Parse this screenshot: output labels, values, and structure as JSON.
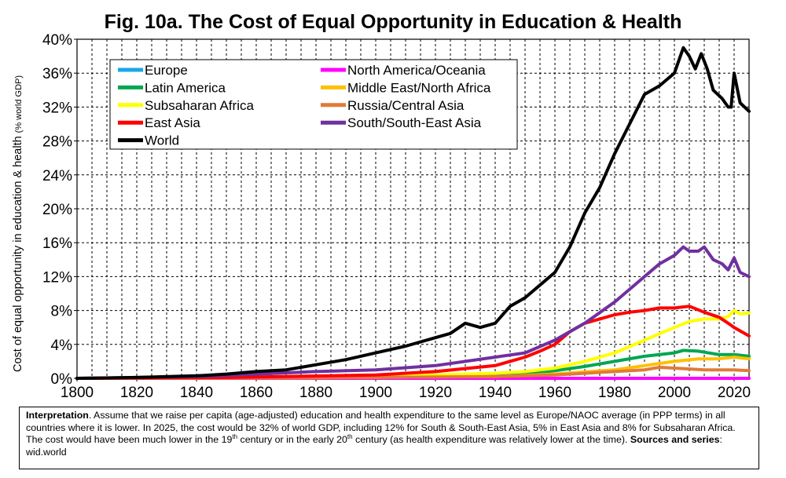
{
  "chart_data": {
    "type": "line",
    "title": "Fig. 10a. The Cost of Equal Opportunity in Education & Health",
    "ylabel": "Cost of equal opportunity in education & health",
    "ylabel_unit": "(% world GDP)",
    "xlabel": "",
    "xlim": [
      1800,
      2025
    ],
    "ylim": [
      0,
      40
    ],
    "x_ticks": [
      "1800",
      "1820",
      "1840",
      "1860",
      "1880",
      "1900",
      "1920",
      "1940",
      "1960",
      "1980",
      "2000",
      "2020"
    ],
    "y_ticks": [
      "0%",
      "4%",
      "8%",
      "12%",
      "16%",
      "20%",
      "24%",
      "28%",
      "32%",
      "36%",
      "40%"
    ],
    "grid": true,
    "legend_position": "top-left",
    "series": [
      {
        "name": "Europe",
        "color": "#1ba7e8",
        "points": [
          [
            1800,
            0
          ],
          [
            2025,
            0
          ]
        ]
      },
      {
        "name": "North America/Oceania",
        "color": "#ff00ff",
        "points": [
          [
            1800,
            0
          ],
          [
            2025,
            0
          ]
        ]
      },
      {
        "name": "Latin America",
        "color": "#00a651",
        "points": [
          [
            1800,
            0
          ],
          [
            1850,
            0.05
          ],
          [
            1900,
            0.15
          ],
          [
            1940,
            0.3
          ],
          [
            1950,
            0.5
          ],
          [
            1960,
            0.9
          ],
          [
            1970,
            1.4
          ],
          [
            1980,
            2.0
          ],
          [
            1990,
            2.6
          ],
          [
            2000,
            3.0
          ],
          [
            2003,
            3.3
          ],
          [
            2008,
            3.2
          ],
          [
            2015,
            2.8
          ],
          [
            2020,
            2.8
          ],
          [
            2025,
            2.6
          ]
        ]
      },
      {
        "name": "Middle East/North Africa",
        "color": "#ffc000",
        "points": [
          [
            1800,
            0
          ],
          [
            1850,
            0.05
          ],
          [
            1900,
            0.1
          ],
          [
            1940,
            0.2
          ],
          [
            1960,
            0.5
          ],
          [
            1980,
            1.0
          ],
          [
            1990,
            1.5
          ],
          [
            2000,
            2.0
          ],
          [
            2008,
            2.3
          ],
          [
            2015,
            2.3
          ],
          [
            2020,
            2.5
          ],
          [
            2025,
            2.3
          ]
        ]
      },
      {
        "name": "Subsaharan Africa",
        "color": "#ffff00",
        "points": [
          [
            1800,
            0
          ],
          [
            1850,
            0.1
          ],
          [
            1900,
            0.3
          ],
          [
            1920,
            0.4
          ],
          [
            1940,
            0.6
          ],
          [
            1950,
            0.8
          ],
          [
            1960,
            1.2
          ],
          [
            1970,
            2.0
          ],
          [
            1980,
            3.0
          ],
          [
            1990,
            4.5
          ],
          [
            2000,
            6.0
          ],
          [
            2005,
            6.7
          ],
          [
            2010,
            7.0
          ],
          [
            2015,
            7.0
          ],
          [
            2018,
            7.3
          ],
          [
            2020,
            8.0
          ],
          [
            2022,
            7.6
          ],
          [
            2025,
            7.7
          ]
        ]
      },
      {
        "name": "Russia/Central Asia",
        "color": "#e07b39",
        "points": [
          [
            1800,
            0
          ],
          [
            1850,
            0.03
          ],
          [
            1900,
            0.1
          ],
          [
            1940,
            0.2
          ],
          [
            1960,
            0.4
          ],
          [
            1980,
            0.8
          ],
          [
            1990,
            1.0
          ],
          [
            1995,
            1.3
          ],
          [
            2000,
            1.2
          ],
          [
            2010,
            1.0
          ],
          [
            2020,
            1.0
          ],
          [
            2025,
            0.9
          ]
        ]
      },
      {
        "name": "East Asia",
        "color": "#ff0000",
        "points": [
          [
            1800,
            0
          ],
          [
            1850,
            0.1
          ],
          [
            1900,
            0.4
          ],
          [
            1920,
            0.8
          ],
          [
            1940,
            1.5
          ],
          [
            1950,
            2.5
          ],
          [
            1955,
            3.2
          ],
          [
            1960,
            4.0
          ],
          [
            1965,
            5.5
          ],
          [
            1970,
            6.5
          ],
          [
            1975,
            7.0
          ],
          [
            1980,
            7.5
          ],
          [
            1985,
            7.8
          ],
          [
            1990,
            8.0
          ],
          [
            1995,
            8.3
          ],
          [
            2000,
            8.3
          ],
          [
            2005,
            8.5
          ],
          [
            2010,
            7.8
          ],
          [
            2015,
            7.2
          ],
          [
            2018,
            6.5
          ],
          [
            2020,
            6.0
          ],
          [
            2025,
            5.0
          ]
        ]
      },
      {
        "name": "South/South-East Asia",
        "color": "#7030a0",
        "points": [
          [
            1800,
            0
          ],
          [
            1840,
            0.2
          ],
          [
            1860,
            0.5
          ],
          [
            1880,
            0.8
          ],
          [
            1900,
            1.0
          ],
          [
            1920,
            1.5
          ],
          [
            1940,
            2.5
          ],
          [
            1950,
            3.0
          ],
          [
            1960,
            4.5
          ],
          [
            1970,
            6.5
          ],
          [
            1980,
            9.0
          ],
          [
            1990,
            12.0
          ],
          [
            1995,
            13.5
          ],
          [
            2000,
            14.5
          ],
          [
            2003,
            15.5
          ],
          [
            2005,
            15.0
          ],
          [
            2008,
            15.0
          ],
          [
            2010,
            15.5
          ],
          [
            2013,
            14.0
          ],
          [
            2016,
            13.5
          ],
          [
            2018,
            12.8
          ],
          [
            2020,
            14.2
          ],
          [
            2022,
            12.5
          ],
          [
            2025,
            12.0
          ]
        ]
      },
      {
        "name": "World",
        "color": "#000000",
        "points": [
          [
            1800,
            0
          ],
          [
            1820,
            0.1
          ],
          [
            1840,
            0.3
          ],
          [
            1850,
            0.5
          ],
          [
            1860,
            0.8
          ],
          [
            1870,
            1.0
          ],
          [
            1880,
            1.6
          ],
          [
            1890,
            2.2
          ],
          [
            1900,
            3.0
          ],
          [
            1910,
            3.8
          ],
          [
            1920,
            4.8
          ],
          [
            1925,
            5.3
          ],
          [
            1930,
            6.5
          ],
          [
            1935,
            6.0
          ],
          [
            1940,
            6.5
          ],
          [
            1945,
            8.5
          ],
          [
            1950,
            9.5
          ],
          [
            1955,
            11.0
          ],
          [
            1960,
            12.5
          ],
          [
            1965,
            15.5
          ],
          [
            1970,
            19.5
          ],
          [
            1975,
            22.5
          ],
          [
            1980,
            26.5
          ],
          [
            1985,
            30.0
          ],
          [
            1990,
            33.5
          ],
          [
            1995,
            34.5
          ],
          [
            2000,
            36.0
          ],
          [
            2003,
            39.0
          ],
          [
            2005,
            38.0
          ],
          [
            2007,
            36.5
          ],
          [
            2009,
            38.3
          ],
          [
            2011,
            36.5
          ],
          [
            2013,
            34.0
          ],
          [
            2016,
            33.0
          ],
          [
            2018,
            32.0
          ],
          [
            2019,
            32.0
          ],
          [
            2020,
            36.0
          ],
          [
            2022,
            32.5
          ],
          [
            2025,
            31.5
          ]
        ]
      }
    ]
  },
  "legend_rows": [
    [
      {
        "name": "Europe",
        "color": "#1ba7e8"
      },
      {
        "name": "North America/Oceania",
        "color": "#ff00ff"
      }
    ],
    [
      {
        "name": "Latin America",
        "color": "#00a651"
      },
      {
        "name": "Middle East/North Africa",
        "color": "#ffc000"
      }
    ],
    [
      {
        "name": "Subsaharan Africa",
        "color": "#ffff00"
      },
      {
        "name": "Russia/Central Asia",
        "color": "#e07b39"
      }
    ],
    [
      {
        "name": "East Asia",
        "color": "#ff0000"
      },
      {
        "name": "South/South-East Asia",
        "color": "#7030a0"
      }
    ],
    [
      {
        "name": "World",
        "color": "#000000"
      }
    ]
  ],
  "interpretation": {
    "label": "Interpretation",
    "text_1": ". Assume that we raise per capita (age-adjusted) education and health expenditure to the same level as Europe/NAOC average (in PPP terms) in all countries where it is lower. In 2025, the cost would be 32% of world GDP, including 12% for South & South-East Asia, 5% in East Asia and 8% for Subsaharan Africa. The cost would have been much lower in the 19",
    "sup_1": "th",
    "text_2": " century or in the early 20",
    "sup_2": "th",
    "text_3": " century (as health expenditure was relatively lower at the time). ",
    "sources_label": "Sources and series",
    "sources_text": ": wid.world"
  }
}
